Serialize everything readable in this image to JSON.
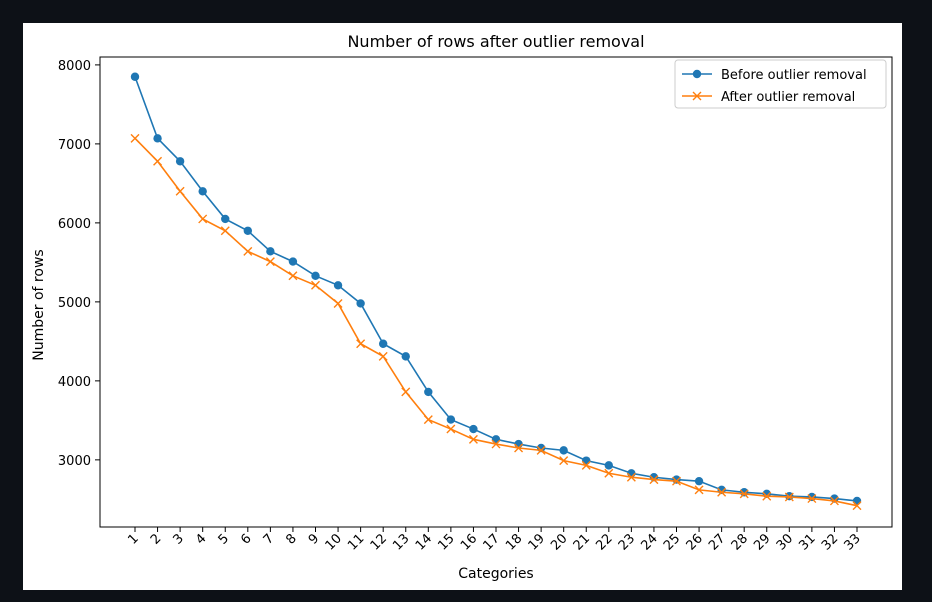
{
  "chart_data": {
    "type": "line",
    "title": "Number of rows after outlier removal",
    "xlabel": "Categories",
    "ylabel": "Number of rows",
    "categories": [
      "1",
      "2",
      "3",
      "4",
      "5",
      "6",
      "7",
      "8",
      "9",
      "10",
      "11",
      "12",
      "13",
      "14",
      "15",
      "16",
      "17",
      "18",
      "19",
      "20",
      "21",
      "22",
      "23",
      "24",
      "25",
      "26",
      "27",
      "28",
      "29",
      "30",
      "31",
      "32",
      "33"
    ],
    "ylim": [
      2150,
      8100
    ],
    "yticks": [
      3000,
      4000,
      5000,
      6000,
      7000,
      8000
    ],
    "grid": false,
    "legend_position": "top-right",
    "series": [
      {
        "name": "Before outlier removal",
        "color": "#1f77b4",
        "marker": "circle",
        "values": [
          7850,
          7070,
          6780,
          6400,
          6050,
          5900,
          5640,
          5510,
          5330,
          5210,
          4980,
          4470,
          4310,
          3860,
          3510,
          3390,
          3260,
          3200,
          3150,
          3120,
          2990,
          2930,
          2830,
          2780,
          2750,
          2730,
          2620,
          2590,
          2570,
          2540,
          2530,
          2510,
          2480
        ]
      },
      {
        "name": "After outlier removal",
        "color": "#ff7f0e",
        "marker": "x",
        "values": [
          7070,
          6780,
          6400,
          6050,
          5900,
          5640,
          5510,
          5330,
          5210,
          4980,
          4470,
          4310,
          3860,
          3510,
          3390,
          3260,
          3200,
          3150,
          3120,
          2990,
          2930,
          2830,
          2780,
          2750,
          2730,
          2620,
          2590,
          2570,
          2540,
          2530,
          2510,
          2480,
          2420
        ]
      }
    ]
  }
}
